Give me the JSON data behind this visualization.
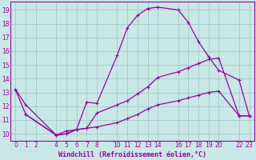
{
  "xlabel": "Windchill (Refroidissement éolien,°C)",
  "bg_color": "#c8e8e8",
  "grid_color": "#a0c8c8",
  "line_color": "#990099",
  "spine_color": "#990099",
  "xlim": [
    -0.5,
    23.5
  ],
  "ylim": [
    9.5,
    19.6
  ],
  "xtick_vals": [
    0,
    1,
    2,
    4,
    5,
    6,
    7,
    8,
    10,
    11,
    12,
    13,
    14,
    16,
    17,
    18,
    19,
    20,
    22,
    23
  ],
  "xtick_labels": [
    "0",
    "1",
    "2",
    "4",
    "5",
    "6",
    "7",
    "8",
    "10",
    "11",
    "12",
    "13",
    "14",
    "16",
    "17",
    "18",
    "19",
    "20",
    "22",
    "23"
  ],
  "ytick_vals": [
    10,
    11,
    12,
    13,
    14,
    15,
    16,
    17,
    18,
    19
  ],
  "ytick_labels": [
    "10",
    "11",
    "12",
    "13",
    "14",
    "15",
    "16",
    "17",
    "18",
    "19"
  ],
  "curve1_x": [
    0,
    1,
    4,
    5,
    6,
    7,
    8,
    10,
    11,
    12,
    13,
    14,
    16,
    17,
    18,
    19,
    20,
    22,
    23
  ],
  "curve1_y": [
    13.2,
    12.1,
    9.9,
    10.2,
    10.3,
    12.3,
    12.2,
    15.7,
    17.7,
    18.6,
    19.1,
    19.2,
    19.0,
    18.1,
    16.7,
    15.6,
    14.6,
    13.9,
    11.3
  ],
  "curve2_x": [
    0,
    1,
    4,
    5,
    6,
    7,
    8,
    10,
    11,
    12,
    13,
    14,
    16,
    17,
    18,
    19,
    20,
    22,
    23
  ],
  "curve2_y": [
    13.2,
    11.4,
    9.9,
    10.0,
    10.3,
    10.4,
    11.5,
    12.1,
    12.4,
    12.9,
    13.4,
    14.1,
    14.5,
    14.8,
    15.1,
    15.4,
    15.5,
    11.3,
    11.3
  ],
  "curve3_x": [
    1,
    4,
    5,
    6,
    7,
    8,
    10,
    11,
    12,
    13,
    14,
    16,
    17,
    18,
    19,
    20,
    22,
    23
  ],
  "curve3_y": [
    11.4,
    9.9,
    10.0,
    10.3,
    10.4,
    10.5,
    10.8,
    11.1,
    11.4,
    11.8,
    12.1,
    12.4,
    12.6,
    12.8,
    13.0,
    13.1,
    11.3,
    11.3
  ],
  "marker_size": 3.0,
  "marker_ew": 0.8,
  "line_width": 0.9,
  "tick_fontsize": 5.5,
  "xlabel_fontsize": 6.0
}
